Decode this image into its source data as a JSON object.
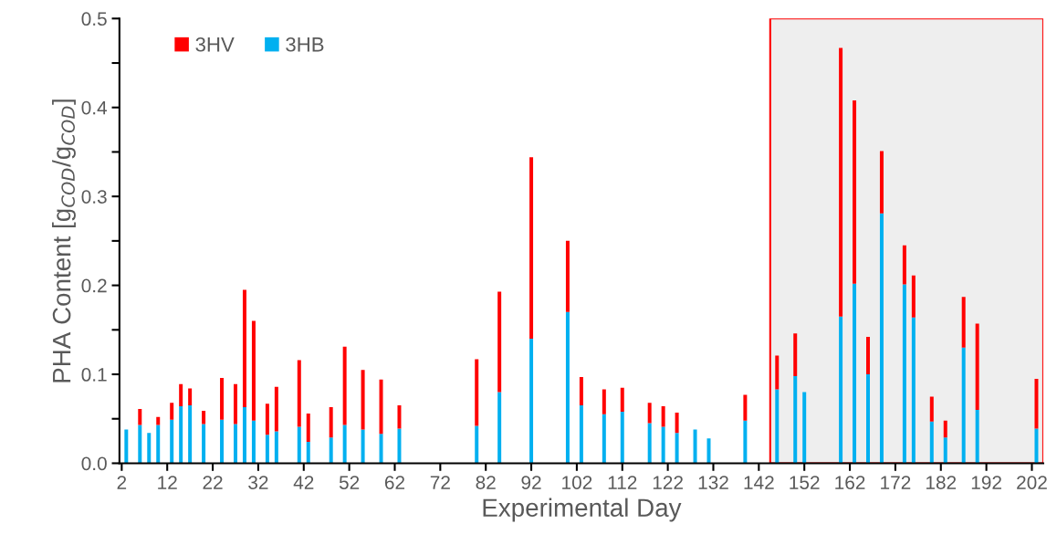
{
  "chart_data": {
    "type": "bar",
    "stacked": true,
    "xlabel": "Experimental Day",
    "ylabel": "PHA Content [g$_{COD}$/g$_{COD}$]",
    "x": [
      3,
      6,
      8,
      10,
      13,
      15,
      17,
      20,
      24,
      27,
      29,
      31,
      34,
      36,
      41,
      43,
      48,
      51,
      55,
      59,
      63,
      80,
      85,
      92,
      100,
      103,
      108,
      112,
      118,
      121,
      124,
      128,
      131,
      139,
      146,
      150,
      152,
      160,
      163,
      166,
      169,
      174,
      176,
      180,
      183,
      187,
      190,
      203
    ],
    "series": [
      {
        "name": "3HB",
        "color": "#00b0f0",
        "values": [
          0.038,
          0.043,
          0.034,
          0.043,
          0.049,
          0.064,
          0.065,
          0.044,
          0.049,
          0.044,
          0.063,
          0.048,
          0.032,
          0.036,
          0.041,
          0.024,
          0.029,
          0.043,
          0.038,
          0.033,
          0.039,
          0.042,
          0.08,
          0.14,
          0.17,
          0.065,
          0.055,
          0.058,
          0.045,
          0.041,
          0.034,
          0.038,
          0.028,
          0.048,
          0.083,
          0.098,
          0.08,
          0.165,
          0.202,
          0.1,
          0.281,
          0.201,
          0.164,
          0.047,
          0.029,
          0.13,
          0.06,
          0.039
        ]
      },
      {
        "name": "3HV",
        "color": "#ff0000",
        "values": [
          null,
          0.018,
          null,
          0.009,
          0.019,
          0.025,
          0.019,
          0.015,
          0.047,
          0.045,
          0.132,
          0.112,
          0.035,
          0.05,
          0.075,
          0.032,
          0.034,
          0.088,
          0.067,
          0.061,
          0.026,
          0.075,
          0.113,
          0.204,
          0.08,
          0.032,
          0.028,
          0.027,
          0.023,
          0.023,
          0.023,
          null,
          null,
          0.029,
          0.038,
          0.048,
          null,
          0.302,
          0.206,
          0.042,
          0.07,
          0.044,
          0.047,
          0.028,
          0.019,
          0.057,
          0.097,
          0.056
        ]
      }
    ],
    "xlim": [
      1.5,
      204.5
    ],
    "xticks": [
      2,
      12,
      22,
      32,
      42,
      52,
      62,
      72,
      82,
      92,
      102,
      112,
      122,
      132,
      142,
      152,
      162,
      172,
      182,
      192,
      202
    ],
    "ylim": [
      0,
      0.5
    ],
    "yticks": [
      {
        "value": 0,
        "label": "0.0"
      },
      {
        "value": 0.05,
        "label": null
      },
      {
        "value": 0.1,
        "label": "0.1"
      },
      {
        "value": 0.15,
        "label": null
      },
      {
        "value": 0.2,
        "label": "0.2"
      },
      {
        "value": 0.25,
        "label": null
      },
      {
        "value": 0.3,
        "label": "0.3"
      },
      {
        "value": 0.35,
        "label": null
      },
      {
        "value": 0.4,
        "label": "0.4"
      },
      {
        "value": 0.45,
        "label": null
      },
      {
        "value": 0.5,
        "label": "0.5"
      }
    ],
    "bands": [
      {
        "axis": "x",
        "from": 144.5,
        "to": 204.5,
        "color": "#eeeeee"
      }
    ],
    "legend": "top left",
    "grid": false
  }
}
